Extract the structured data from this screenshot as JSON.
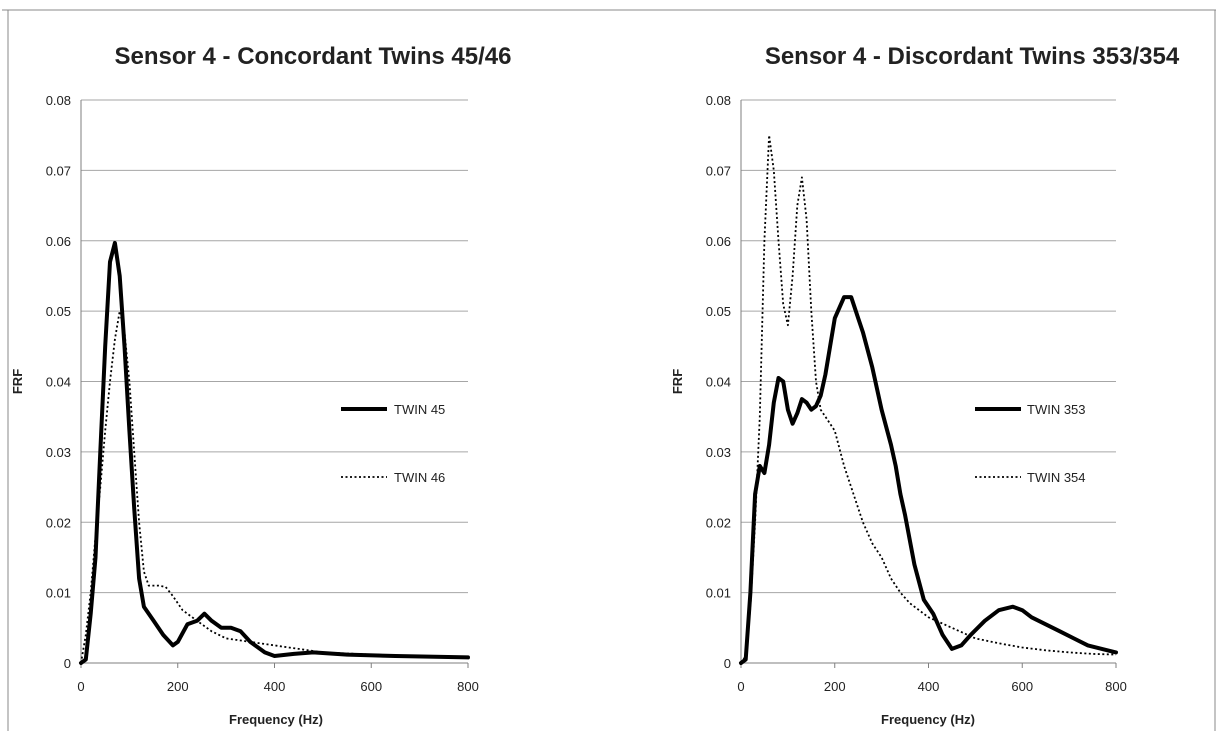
{
  "chart_data": [
    {
      "type": "line",
      "title": "Sensor 4 - Concordant Twins 45/46",
      "xlabel": "Frequency (Hz)",
      "ylabel": "FRF",
      "xlim": [
        0,
        800
      ],
      "ylim": [
        0,
        0.08
      ],
      "xticks": [
        "0",
        "200",
        "400",
        "600",
        "800"
      ],
      "yticks": [
        "0",
        "0.01",
        "0.02",
        "0.03",
        "0.04",
        "0.05",
        "0.06",
        "0.07",
        "0.08"
      ],
      "grid": "horizontal",
      "legend_position": "right-middle",
      "series": [
        {
          "name": "TWIN 45",
          "style": "solid-thick",
          "color": "#000000",
          "points": [
            [
              0,
              0
            ],
            [
              10,
              0.0005
            ],
            [
              20,
              0.007
            ],
            [
              30,
              0.015
            ],
            [
              40,
              0.03
            ],
            [
              50,
              0.045
            ],
            [
              60,
              0.057
            ],
            [
              70,
              0.0597
            ],
            [
              80,
              0.055
            ],
            [
              90,
              0.045
            ],
            [
              100,
              0.033
            ],
            [
              110,
              0.022
            ],
            [
              120,
              0.012
            ],
            [
              130,
              0.008
            ],
            [
              150,
              0.006
            ],
            [
              170,
              0.004
            ],
            [
              190,
              0.0025
            ],
            [
              200,
              0.003
            ],
            [
              220,
              0.0055
            ],
            [
              240,
              0.006
            ],
            [
              255,
              0.007
            ],
            [
              270,
              0.006
            ],
            [
              290,
              0.005
            ],
            [
              310,
              0.005
            ],
            [
              330,
              0.0045
            ],
            [
              350,
              0.003
            ],
            [
              380,
              0.0015
            ],
            [
              400,
              0.001
            ],
            [
              440,
              0.0013
            ],
            [
              480,
              0.0015
            ],
            [
              550,
              0.0012
            ],
            [
              650,
              0.001
            ],
            [
              800,
              0.0008
            ]
          ]
        },
        {
          "name": "TWIN 46",
          "style": "dotted",
          "color": "#000000",
          "points": [
            [
              0,
              0
            ],
            [
              10,
              0.004
            ],
            [
              20,
              0.01
            ],
            [
              30,
              0.018
            ],
            [
              40,
              0.025
            ],
            [
              50,
              0.033
            ],
            [
              60,
              0.04
            ],
            [
              70,
              0.046
            ],
            [
              80,
              0.05
            ],
            [
              90,
              0.047
            ],
            [
              100,
              0.04
            ],
            [
              110,
              0.03
            ],
            [
              120,
              0.02
            ],
            [
              130,
              0.013
            ],
            [
              140,
              0.011
            ],
            [
              160,
              0.011
            ],
            [
              175,
              0.0108
            ],
            [
              190,
              0.0095
            ],
            [
              210,
              0.0075
            ],
            [
              230,
              0.0065
            ],
            [
              250,
              0.0055
            ],
            [
              270,
              0.0045
            ],
            [
              300,
              0.0035
            ],
            [
              350,
              0.003
            ],
            [
              400,
              0.0025
            ],
            [
              450,
              0.002
            ],
            [
              500,
              0.0015
            ],
            [
              600,
              0.0012
            ],
            [
              700,
              0.001
            ],
            [
              800,
              0.0008
            ]
          ]
        }
      ]
    },
    {
      "type": "line",
      "title": "Sensor 4 - Discordant Twins 353/354",
      "xlabel": "Frequency (Hz)",
      "ylabel": "FRF",
      "xlim": [
        0,
        800
      ],
      "ylim": [
        0,
        0.08
      ],
      "xticks": [
        "0",
        "200",
        "400",
        "600",
        "800"
      ],
      "yticks": [
        "0",
        "0.01",
        "0.02",
        "0.03",
        "0.04",
        "0.05",
        "0.06",
        "0.07",
        "0.08"
      ],
      "grid": "horizontal",
      "legend_position": "right-middle",
      "series": [
        {
          "name": "TWIN 353",
          "style": "solid-thick",
          "color": "#000000",
          "points": [
            [
              0,
              0
            ],
            [
              10,
              0.0005
            ],
            [
              20,
              0.01
            ],
            [
              30,
              0.024
            ],
            [
              40,
              0.028
            ],
            [
              50,
              0.027
            ],
            [
              60,
              0.031
            ],
            [
              70,
              0.037
            ],
            [
              80,
              0.0405
            ],
            [
              90,
              0.04
            ],
            [
              100,
              0.036
            ],
            [
              110,
              0.034
            ],
            [
              120,
              0.0355
            ],
            [
              130,
              0.0375
            ],
            [
              140,
              0.037
            ],
            [
              150,
              0.036
            ],
            [
              160,
              0.0365
            ],
            [
              170,
              0.038
            ],
            [
              180,
              0.041
            ],
            [
              190,
              0.045
            ],
            [
              200,
              0.049
            ],
            [
              220,
              0.052
            ],
            [
              235,
              0.052
            ],
            [
              250,
              0.049
            ],
            [
              260,
              0.047
            ],
            [
              280,
              0.042
            ],
            [
              300,
              0.036
            ],
            [
              320,
              0.031
            ],
            [
              330,
              0.028
            ],
            [
              340,
              0.024
            ],
            [
              350,
              0.021
            ],
            [
              370,
              0.014
            ],
            [
              390,
              0.009
            ],
            [
              410,
              0.007
            ],
            [
              430,
              0.004
            ],
            [
              450,
              0.002
            ],
            [
              470,
              0.0025
            ],
            [
              490,
              0.004
            ],
            [
              520,
              0.006
            ],
            [
              550,
              0.0075
            ],
            [
              580,
              0.008
            ],
            [
              600,
              0.0075
            ],
            [
              620,
              0.0065
            ],
            [
              650,
              0.0055
            ],
            [
              680,
              0.0045
            ],
            [
              710,
              0.0035
            ],
            [
              740,
              0.0025
            ],
            [
              770,
              0.002
            ],
            [
              800,
              0.0015
            ]
          ]
        },
        {
          "name": "TWIN 354",
          "style": "dotted",
          "color": "#000000",
          "points": [
            [
              0,
              0
            ],
            [
              10,
              0.001
            ],
            [
              20,
              0.008
            ],
            [
              30,
              0.02
            ],
            [
              40,
              0.035
            ],
            [
              50,
              0.06
            ],
            [
              60,
              0.075
            ],
            [
              70,
              0.07
            ],
            [
              80,
              0.06
            ],
            [
              90,
              0.051
            ],
            [
              100,
              0.048
            ],
            [
              110,
              0.055
            ],
            [
              120,
              0.065
            ],
            [
              130,
              0.069
            ],
            [
              140,
              0.063
            ],
            [
              150,
              0.05
            ],
            [
              160,
              0.04
            ],
            [
              170,
              0.036
            ],
            [
              180,
              0.035
            ],
            [
              200,
              0.033
            ],
            [
              220,
              0.028
            ],
            [
              240,
              0.024
            ],
            [
              260,
              0.02
            ],
            [
              280,
              0.017
            ],
            [
              300,
              0.015
            ],
            [
              320,
              0.012
            ],
            [
              340,
              0.01
            ],
            [
              360,
              0.0085
            ],
            [
              400,
              0.0065
            ],
            [
              450,
              0.005
            ],
            [
              500,
              0.0035
            ],
            [
              550,
              0.0028
            ],
            [
              600,
              0.0022
            ],
            [
              650,
              0.0018
            ],
            [
              700,
              0.0015
            ],
            [
              750,
              0.0013
            ],
            [
              800,
              0.0012
            ]
          ]
        }
      ]
    }
  ]
}
